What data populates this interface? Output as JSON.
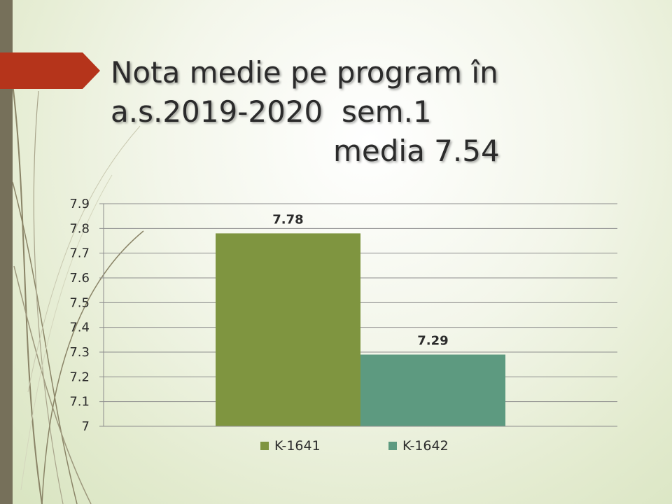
{
  "title": {
    "line1": "Nota medie pe program în",
    "line2": "a.s.2019-2020  sem.1",
    "line3": "media 7.54"
  },
  "colors": {
    "accent_arrow": "#b5341b",
    "left_band": "#76705a",
    "series1": "#7f9540",
    "series2": "#5d9a80"
  },
  "chart_data": {
    "type": "bar",
    "categories": [
      ""
    ],
    "series": [
      {
        "name": "K-1641",
        "values": [
          7.78
        ],
        "color": "#7f9540"
      },
      {
        "name": "K-1642",
        "values": [
          7.29
        ],
        "color": "#5d9a80"
      }
    ],
    "data_labels": [
      "7.78",
      "7.29"
    ],
    "ylim": [
      7,
      7.9
    ],
    "yticks": [
      "7",
      "7.1",
      "7.2",
      "7.3",
      "7.4",
      "7.5",
      "7.6",
      "7.7",
      "7.8",
      "7.9"
    ],
    "grid": true,
    "legend": "bottom"
  }
}
